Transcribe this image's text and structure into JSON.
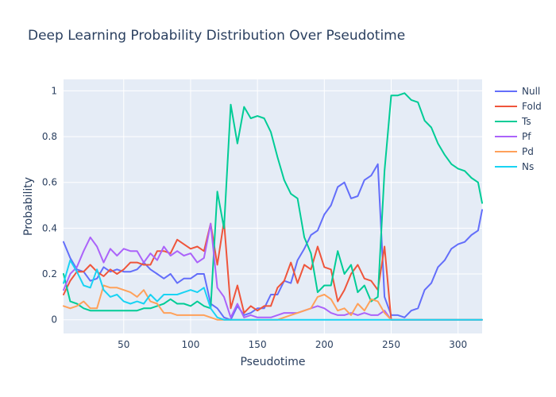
{
  "chart_data": {
    "type": "line",
    "title": "Deep Learning Probability Distribution Over Pseudotime",
    "xlabel": "Pseudotime",
    "ylabel": "Probability",
    "xlim": [
      5,
      318
    ],
    "ylim": [
      -0.06,
      1.05
    ],
    "xticks": [
      50,
      100,
      150,
      200,
      250,
      300
    ],
    "yticks": [
      0,
      0.2,
      0.4,
      0.6,
      0.8,
      1
    ],
    "ytick_labels": [
      "0",
      "0.2",
      "0.4",
      "0.6",
      "0.8",
      "1"
    ],
    "grid": true,
    "legend_position": "top-right",
    "background": "#e5ecf6",
    "x": [
      5,
      10,
      15,
      20,
      25,
      30,
      35,
      40,
      45,
      50,
      55,
      60,
      65,
      70,
      75,
      80,
      85,
      90,
      95,
      100,
      105,
      110,
      115,
      120,
      125,
      130,
      135,
      140,
      145,
      150,
      155,
      160,
      165,
      170,
      175,
      180,
      185,
      190,
      195,
      200,
      205,
      210,
      215,
      220,
      225,
      230,
      235,
      240,
      245,
      250,
      255,
      260,
      265,
      270,
      275,
      280,
      285,
      290,
      295,
      300,
      305,
      310,
      315,
      318
    ],
    "series": [
      {
        "name": "Null",
        "color": "#636efa",
        "values": [
          0.34,
          0.27,
          0.22,
          0.21,
          0.17,
          0.18,
          0.23,
          0.21,
          0.22,
          0.21,
          0.21,
          0.22,
          0.25,
          0.22,
          0.2,
          0.18,
          0.2,
          0.16,
          0.18,
          0.18,
          0.2,
          0.2,
          0.07,
          0.05,
          0.01,
          0.0,
          0.06,
          0.02,
          0.03,
          0.05,
          0.05,
          0.11,
          0.11,
          0.17,
          0.16,
          0.26,
          0.31,
          0.37,
          0.39,
          0.46,
          0.5,
          0.58,
          0.6,
          0.53,
          0.54,
          0.61,
          0.63,
          0.68,
          0.1,
          0.02,
          0.02,
          0.01,
          0.04,
          0.05,
          0.13,
          0.16,
          0.23,
          0.26,
          0.31,
          0.33,
          0.34,
          0.37,
          0.39,
          0.48
        ]
      },
      {
        "name": "Fold",
        "color": "#ef553b",
        "values": [
          0.11,
          0.17,
          0.21,
          0.21,
          0.24,
          0.21,
          0.19,
          0.22,
          0.2,
          0.22,
          0.25,
          0.25,
          0.24,
          0.24,
          0.3,
          0.3,
          0.29,
          0.35,
          0.33,
          0.31,
          0.32,
          0.3,
          0.42,
          0.24,
          0.43,
          0.05,
          0.15,
          0.03,
          0.06,
          0.04,
          0.06,
          0.06,
          0.14,
          0.17,
          0.25,
          0.16,
          0.24,
          0.22,
          0.32,
          0.23,
          0.22,
          0.08,
          0.13,
          0.2,
          0.24,
          0.18,
          0.17,
          0.13,
          0.32,
          0.0,
          0.0,
          0.0,
          0.0,
          0.0,
          0.0,
          0.0,
          0.0,
          0.0,
          0.0,
          0.0,
          0.0,
          0.0,
          0.0,
          0.0
        ]
      },
      {
        "name": "Ts",
        "color": "#00cc96",
        "values": [
          0.2,
          0.08,
          0.07,
          0.05,
          0.04,
          0.04,
          0.04,
          0.04,
          0.04,
          0.04,
          0.04,
          0.04,
          0.05,
          0.05,
          0.06,
          0.07,
          0.09,
          0.07,
          0.07,
          0.06,
          0.08,
          0.06,
          0.05,
          0.56,
          0.4,
          0.94,
          0.77,
          0.93,
          0.88,
          0.89,
          0.88,
          0.82,
          0.71,
          0.61,
          0.55,
          0.53,
          0.36,
          0.29,
          0.12,
          0.15,
          0.15,
          0.3,
          0.2,
          0.24,
          0.12,
          0.15,
          0.08,
          0.1,
          0.65,
          0.98,
          0.98,
          0.99,
          0.96,
          0.95,
          0.87,
          0.84,
          0.77,
          0.72,
          0.68,
          0.66,
          0.65,
          0.62,
          0.6,
          0.51
        ]
      },
      {
        "name": "Pf",
        "color": "#ab63fa",
        "values": [
          0.13,
          0.2,
          0.23,
          0.3,
          0.36,
          0.32,
          0.25,
          0.31,
          0.28,
          0.31,
          0.3,
          0.3,
          0.25,
          0.29,
          0.26,
          0.32,
          0.28,
          0.3,
          0.28,
          0.29,
          0.25,
          0.27,
          0.42,
          0.14,
          0.1,
          0.01,
          0.07,
          0.01,
          0.02,
          0.01,
          0.01,
          0.01,
          0.02,
          0.03,
          0.03,
          0.03,
          0.04,
          0.05,
          0.06,
          0.05,
          0.03,
          0.02,
          0.02,
          0.03,
          0.02,
          0.03,
          0.02,
          0.02,
          0.04,
          0.0,
          0.0,
          0.0,
          0.0,
          0.0,
          0.0,
          0.0,
          0.0,
          0.0,
          0.0,
          0.0,
          0.0,
          0.0,
          0.0,
          0.0
        ]
      },
      {
        "name": "Pd",
        "color": "#ffa15a",
        "values": [
          0.06,
          0.05,
          0.06,
          0.08,
          0.05,
          0.05,
          0.15,
          0.14,
          0.14,
          0.13,
          0.12,
          0.1,
          0.13,
          0.08,
          0.07,
          0.03,
          0.03,
          0.02,
          0.02,
          0.02,
          0.02,
          0.02,
          0.01,
          0.0,
          0.0,
          0.0,
          0.0,
          0.0,
          0.0,
          0.0,
          0.0,
          0.0,
          0.0,
          0.01,
          0.02,
          0.03,
          0.04,
          0.05,
          0.1,
          0.11,
          0.09,
          0.04,
          0.05,
          0.02,
          0.07,
          0.04,
          0.09,
          0.08,
          0.03,
          0.0,
          0.0,
          0.0,
          0.0,
          0.0,
          0.0,
          0.0,
          0.0,
          0.0,
          0.0,
          0.0,
          0.0,
          0.0,
          0.0,
          0.0
        ]
      },
      {
        "name": "Ns",
        "color": "#19d3f3",
        "values": [
          0.16,
          0.26,
          0.21,
          0.15,
          0.14,
          0.22,
          0.13,
          0.1,
          0.11,
          0.08,
          0.07,
          0.08,
          0.07,
          0.11,
          0.08,
          0.11,
          0.11,
          0.11,
          0.12,
          0.13,
          0.12,
          0.14,
          0.05,
          0.01,
          0.0,
          0.0,
          0.0,
          0.0,
          0.0,
          0.0,
          0.0,
          0.0,
          0.0,
          0.0,
          0.0,
          0.0,
          0.0,
          0.0,
          0.0,
          0.0,
          0.0,
          0.0,
          0.0,
          0.0,
          0.0,
          0.0,
          0.0,
          0.0,
          0.0,
          0.0,
          0.0,
          0.0,
          0.0,
          0.0,
          0.0,
          0.0,
          0.0,
          0.0,
          0.0,
          0.0,
          0.0,
          0.0,
          0.0,
          0.0
        ]
      }
    ]
  }
}
